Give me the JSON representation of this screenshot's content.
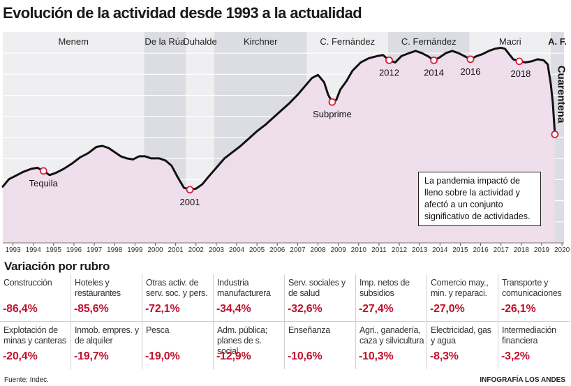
{
  "title": "Evolución de la actividad desde 1993 a la actualidad",
  "chart_data": {
    "type": "line",
    "xlim": [
      1993,
      2020.6
    ],
    "periods": [
      {
        "name": "Menem",
        "start": 1993,
        "end": 1999.95,
        "shade": false
      },
      {
        "name": "De la Rúa",
        "start": 1999.95,
        "end": 2002.0,
        "shade": true
      },
      {
        "name": "Duhalde",
        "start": 2002.0,
        "end": 2003.4,
        "shade": false
      },
      {
        "name": "Kirchner",
        "start": 2003.4,
        "end": 2007.95,
        "shade": true
      },
      {
        "name": "C. Fernández",
        "start": 2007.95,
        "end": 2011.95,
        "shade": false
      },
      {
        "name": "C. Fernández",
        "start": 2011.95,
        "end": 2015.95,
        "shade": true
      },
      {
        "name": "Macri",
        "start": 2015.95,
        "end": 2019.95,
        "shade": false
      },
      {
        "name": "A. F.",
        "start": 2019.95,
        "end": 2020.6,
        "shade": true
      }
    ],
    "x_ticks": [
      "1993",
      "1994",
      "1995",
      "1996",
      "1997",
      "1998",
      "1999",
      "2000",
      "2001",
      "2002",
      "2003",
      "2004",
      "2005",
      "2006",
      "2007",
      "2008",
      "2009",
      "2010",
      "2011",
      "2012",
      "2013",
      "2014",
      "2015",
      "2016",
      "2017",
      "2018",
      "2019",
      "2020"
    ],
    "series": [
      {
        "values": [
          [
            1993.0,
            72
          ],
          [
            1993.3,
            75.5
          ],
          [
            1993.7,
            77.5
          ],
          [
            1994.0,
            79
          ],
          [
            1994.4,
            80.5
          ],
          [
            1994.7,
            81
          ],
          [
            1995.0,
            79.5
          ],
          [
            1995.3,
            77.5
          ],
          [
            1995.6,
            78.5
          ],
          [
            1996.0,
            80.5
          ],
          [
            1996.4,
            83
          ],
          [
            1996.8,
            86
          ],
          [
            1997.2,
            88
          ],
          [
            1997.6,
            91
          ],
          [
            1997.9,
            91.5
          ],
          [
            1998.2,
            90.5
          ],
          [
            1998.5,
            88.5
          ],
          [
            1998.8,
            86.5
          ],
          [
            1999.1,
            85.5
          ],
          [
            1999.4,
            85
          ],
          [
            1999.7,
            86.5
          ],
          [
            2000.0,
            86.5
          ],
          [
            2000.3,
            85.5
          ],
          [
            2000.7,
            85.5
          ],
          [
            2001.0,
            84.5
          ],
          [
            2001.3,
            82
          ],
          [
            2001.6,
            76.5
          ],
          [
            2001.9,
            71.5
          ],
          [
            2002.2,
            70.5
          ],
          [
            2002.5,
            71
          ],
          [
            2002.8,
            73
          ],
          [
            2003.1,
            76.5
          ],
          [
            2003.5,
            81
          ],
          [
            2003.9,
            85.5
          ],
          [
            2004.3,
            88.5
          ],
          [
            2004.7,
            91.5
          ],
          [
            2005.1,
            95
          ],
          [
            2005.5,
            98.5
          ],
          [
            2005.9,
            101.5
          ],
          [
            2006.3,
            105
          ],
          [
            2006.7,
            108.5
          ],
          [
            2007.1,
            112
          ],
          [
            2007.5,
            116
          ],
          [
            2007.9,
            120.5
          ],
          [
            2008.2,
            124
          ],
          [
            2008.5,
            125.5
          ],
          [
            2008.8,
            122
          ],
          [
            2009.0,
            116
          ],
          [
            2009.2,
            112.5
          ],
          [
            2009.4,
            113.5
          ],
          [
            2009.6,
            118.5
          ],
          [
            2009.9,
            122.5
          ],
          [
            2010.2,
            127.5
          ],
          [
            2010.6,
            131.5
          ],
          [
            2011.0,
            133.5
          ],
          [
            2011.4,
            134.5
          ],
          [
            2011.7,
            135
          ],
          [
            2012.0,
            132.5
          ],
          [
            2012.3,
            131.5
          ],
          [
            2012.6,
            134.5
          ],
          [
            2013.0,
            136
          ],
          [
            2013.3,
            137
          ],
          [
            2013.6,
            136
          ],
          [
            2013.9,
            134.5
          ],
          [
            2014.2,
            132.5
          ],
          [
            2014.5,
            134
          ],
          [
            2014.8,
            136
          ],
          [
            2015.1,
            137
          ],
          [
            2015.4,
            136
          ],
          [
            2015.7,
            134.5
          ],
          [
            2016.0,
            133
          ],
          [
            2016.3,
            134.5
          ],
          [
            2016.6,
            135.5
          ],
          [
            2016.9,
            137
          ],
          [
            2017.2,
            138
          ],
          [
            2017.5,
            138.5
          ],
          [
            2017.7,
            138
          ],
          [
            2017.9,
            135.5
          ],
          [
            2018.1,
            133
          ],
          [
            2018.4,
            132
          ],
          [
            2018.7,
            131.5
          ],
          [
            2019.0,
            132
          ],
          [
            2019.3,
            133
          ],
          [
            2019.6,
            132.5
          ],
          [
            2019.8,
            130.5
          ],
          [
            2019.95,
            121
          ],
          [
            2020.05,
            112
          ],
          [
            2020.15,
            97
          ]
        ]
      }
    ],
    "annotations": [
      {
        "label": "Tequila",
        "x": 1995.0,
        "y": 79.5
      },
      {
        "label": "2001",
        "x": 2002.2,
        "y": 70.5
      },
      {
        "label": "Subprime",
        "x": 2009.2,
        "y": 112.5
      },
      {
        "label": "2012",
        "x": 2012.0,
        "y": 132.5
      },
      {
        "label": "2014",
        "x": 2014.2,
        "y": 132.5
      },
      {
        "label": "2016",
        "x": 2016.0,
        "y": 133
      },
      {
        "label": "2018",
        "x": 2018.4,
        "y": 132
      },
      {
        "label": "",
        "x": 2020.15,
        "y": 97
      }
    ],
    "vertical_label": "Cuarentena",
    "callout": "La pandemia impactó de lleno sobre la actividad y afectó a un conjunto significativo de actividades."
  },
  "rubros": {
    "title": "Variación por rubro",
    "items": [
      {
        "label": "Construcción",
        "value": "-86,4%"
      },
      {
        "label": "Hoteles y restaurantes",
        "value": "-85,6%"
      },
      {
        "label": "Otras activ. de serv. soc. y pers.",
        "value": "-72,1%"
      },
      {
        "label": "Industria manufacturera",
        "value": "-34,4%"
      },
      {
        "label": "Serv. sociales y de salud",
        "value": "-32,6%"
      },
      {
        "label": "Imp. netos de subsidios",
        "value": "-27,4%"
      },
      {
        "label": "Comercio may., min. y reparaci.",
        "value": "-27,0%"
      },
      {
        "label": "Transporte y comunicaciones",
        "value": "-26,1%"
      },
      {
        "label": "Explotación de minas y canteras",
        "value": "-20,4%"
      },
      {
        "label": "Inmob. empres. y de alquiler",
        "value": "-19,7%"
      },
      {
        "label": "Pesca",
        "value": "-19,0%"
      },
      {
        "label": "Adm. pública; planes de s. social",
        "value": "-12,9%"
      },
      {
        "label": "Enseñanza",
        "value": "-10,6%"
      },
      {
        "label": "Agri., ganadería, caza y silvicultura",
        "value": "-10,3%"
      },
      {
        "label": "Electricidad, gas y agua",
        "value": "-8,3%"
      },
      {
        "label": "Intermediación financiera",
        "value": "-3,2%"
      }
    ]
  },
  "footer": {
    "source": "Fuente: Indec.",
    "credit": "INFOGRAFÍA LOS ANDES"
  },
  "colors": {
    "line": "#111111",
    "fill": "#efdcea",
    "shade": "#dcdde2",
    "value": "#c0122c",
    "marker": "#d0223c"
  }
}
